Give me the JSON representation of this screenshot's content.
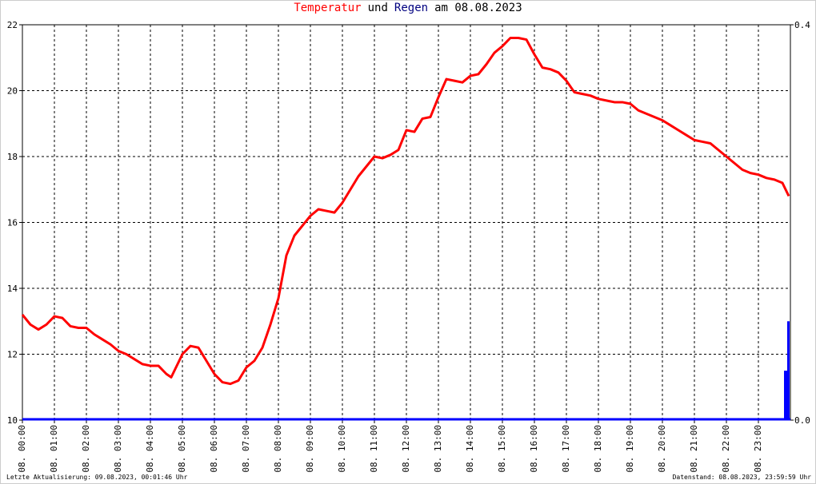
{
  "chart_data": {
    "type": "line",
    "title": [
      {
        "text": "Temperatur",
        "color": "#ff0000"
      },
      {
        "text": "und",
        "color": "#000000"
      },
      {
        "text": "Regen",
        "color": "#000080"
      },
      {
        "text": "am 08.08.2023",
        "color": "#000000"
      }
    ],
    "notes": {
      "left": "Letzte Aktualisierung: 09.08.2023, 00:01:46 Uhr",
      "right": "Datenstand: 08.08.2023, 23:59:59 Uhr"
    },
    "xlim": [
      0,
      24
    ],
    "xticks": [
      {
        "value": 0,
        "label": "08. 00:00"
      },
      {
        "value": 1,
        "label": "08. 01:00"
      },
      {
        "value": 2,
        "label": "08. 02:00"
      },
      {
        "value": 3,
        "label": "08. 03:00"
      },
      {
        "value": 4,
        "label": "08. 04:00"
      },
      {
        "value": 5,
        "label": "08. 05:00"
      },
      {
        "value": 6,
        "label": "08. 06:00"
      },
      {
        "value": 7,
        "label": "08. 07:00"
      },
      {
        "value": 8,
        "label": "08. 08:00"
      },
      {
        "value": 9,
        "label": "08. 09:00"
      },
      {
        "value": 10,
        "label": "08. 10:00"
      },
      {
        "value": 11,
        "label": "08. 11:00"
      },
      {
        "value": 12,
        "label": "08. 12:00"
      },
      {
        "value": 13,
        "label": "08. 13:00"
      },
      {
        "value": 14,
        "label": "08. 14:00"
      },
      {
        "value": 15,
        "label": "08. 15:00"
      },
      {
        "value": 16,
        "label": "08. 16:00"
      },
      {
        "value": 17,
        "label": "08. 17:00"
      },
      {
        "value": 18,
        "label": "08. 18:00"
      },
      {
        "value": 19,
        "label": "08. 19:00"
      },
      {
        "value": 20,
        "label": "08. 20:00"
      },
      {
        "value": 21,
        "label": "08. 21:00"
      },
      {
        "value": 22,
        "label": "08. 22:00"
      },
      {
        "value": 23,
        "label": "08. 23:00"
      }
    ],
    "ylim": [
      10,
      22
    ],
    "yticks": [
      10,
      12,
      14,
      16,
      18,
      20,
      22
    ],
    "y2lim": [
      0,
      0.4
    ],
    "y2ticks": [
      {
        "value": 0,
        "label": "0.0"
      },
      0.4
    ],
    "grid": true,
    "series": [
      {
        "name": "Temperatur",
        "type": "line",
        "color": "#ff0000",
        "x": [
          0,
          0.25,
          0.5,
          0.75,
          1,
          1.25,
          1.5,
          1.75,
          2,
          2.25,
          2.5,
          2.75,
          3,
          3.25,
          3.5,
          3.75,
          4,
          4.25,
          4.5,
          4.65,
          5,
          5.25,
          5.5,
          5.75,
          6,
          6.25,
          6.5,
          6.75,
          7,
          7.25,
          7.5,
          7.75,
          8,
          8.25,
          8.5,
          8.75,
          9,
          9.25,
          9.5,
          9.75,
          10,
          10.25,
          10.5,
          10.75,
          11,
          11.25,
          11.5,
          11.75,
          12,
          12.25,
          12.5,
          12.75,
          13,
          13.25,
          13.5,
          13.75,
          14,
          14.25,
          14.5,
          14.75,
          15,
          15.25,
          15.5,
          15.75,
          16,
          16.25,
          16.5,
          16.75,
          17,
          17.25,
          17.5,
          17.75,
          18,
          18.25,
          18.5,
          18.75,
          19,
          19.25,
          19.5,
          19.75,
          20,
          20.25,
          20.5,
          20.75,
          21,
          21.25,
          21.5,
          21.75,
          22,
          22.25,
          22.5,
          22.75,
          23,
          23.25,
          23.5,
          23.75,
          23.95
        ],
        "values": [
          13.2,
          12.9,
          12.75,
          12.9,
          13.15,
          13.1,
          12.85,
          12.8,
          12.8,
          12.6,
          12.45,
          12.3,
          12.1,
          12.0,
          11.85,
          11.7,
          11.65,
          11.65,
          11.4,
          11.3,
          12.0,
          12.25,
          12.2,
          11.8,
          11.4,
          11.15,
          11.1,
          11.2,
          11.6,
          11.8,
          12.2,
          12.9,
          13.7,
          15.0,
          15.6,
          15.9,
          16.2,
          16.4,
          16.35,
          16.3,
          16.6,
          17.0,
          17.4,
          17.7,
          18.0,
          17.95,
          18.05,
          18.2,
          18.8,
          18.75,
          19.15,
          19.2,
          19.8,
          20.35,
          20.3,
          20.25,
          20.45,
          20.5,
          20.8,
          21.15,
          21.35,
          21.6,
          21.6,
          21.55,
          21.1,
          20.7,
          20.65,
          20.55,
          20.3,
          19.95,
          19.9,
          19.85,
          19.75,
          19.7,
          19.65,
          19.65,
          19.6,
          19.4,
          19.3,
          19.2,
          19.1,
          18.95,
          18.8,
          18.65,
          18.5,
          18.45,
          18.4,
          18.2,
          18.0,
          17.8,
          17.6,
          17.5,
          17.45,
          17.35,
          17.3,
          17.2,
          16.8
        ]
      },
      {
        "name": "Regen",
        "type": "bar",
        "axis": "y2",
        "color": "#0000ff",
        "x": [
          23.8,
          23.9
        ],
        "values": [
          0.05,
          0.1
        ]
      }
    ]
  }
}
